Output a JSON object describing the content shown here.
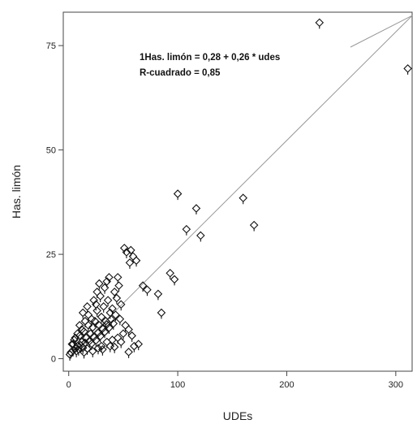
{
  "chart_data": {
    "type": "scatter",
    "xlabel": "UDEs",
    "ylabel": "Has. limón",
    "xlim": [
      -5,
      315
    ],
    "ylim": [
      -3,
      83
    ],
    "x_ticks": [
      0,
      100,
      200,
      300
    ],
    "y_ticks": [
      0,
      25,
      50,
      75
    ],
    "grid": false,
    "legend": "none",
    "marker": "open-diamond-with-tail",
    "annotations": [
      "1Has. limón = 0,28 + 0,26 * udes",
      "R-cuadrado = 0,85"
    ],
    "regression": {
      "intercept": 0.28,
      "slope": 0.26,
      "x_range": [
        0,
        315
      ]
    },
    "series": [
      {
        "points": [
          [
            230,
            80.5
          ],
          [
            311,
            69.5
          ],
          [
            100,
            39.5
          ],
          [
            117,
            36
          ],
          [
            160,
            38.5
          ],
          [
            170,
            32
          ],
          [
            108,
            31
          ],
          [
            121,
            29.5
          ],
          [
            51,
            26.5
          ],
          [
            53,
            25.5
          ],
          [
            57,
            26
          ],
          [
            59,
            24.5
          ],
          [
            56,
            23
          ],
          [
            62,
            23.5
          ],
          [
            93,
            20.5
          ],
          [
            97,
            19
          ],
          [
            68,
            17.5
          ],
          [
            72,
            16.5
          ],
          [
            82,
            15.5
          ],
          [
            85,
            11
          ],
          [
            45,
            19.5
          ],
          [
            46,
            17.5
          ],
          [
            42,
            16
          ],
          [
            44,
            14.5
          ],
          [
            48,
            13
          ],
          [
            40,
            12
          ],
          [
            43,
            10.5
          ],
          [
            47,
            9.5
          ],
          [
            52,
            8
          ],
          [
            55,
            7
          ],
          [
            58,
            5.5
          ],
          [
            60,
            3
          ],
          [
            36,
            14
          ],
          [
            38,
            11
          ],
          [
            34,
            9
          ],
          [
            32,
            12.5
          ],
          [
            30,
            10
          ],
          [
            28,
            8
          ],
          [
            26,
            11.5
          ],
          [
            24,
            9
          ],
          [
            22,
            7.5
          ],
          [
            20,
            6
          ],
          [
            18,
            8
          ],
          [
            16,
            5
          ],
          [
            14,
            6.5
          ],
          [
            12,
            4
          ],
          [
            10,
            5.5
          ],
          [
            8,
            3
          ],
          [
            6,
            2.5
          ],
          [
            4,
            2
          ],
          [
            2,
            1.5
          ],
          [
            1,
            1
          ],
          [
            3,
            3.5
          ],
          [
            5,
            4.5
          ],
          [
            7,
            1.8
          ],
          [
            9,
            2.2
          ],
          [
            11,
            3.2
          ],
          [
            13,
            2.6
          ],
          [
            15,
            3.8
          ],
          [
            17,
            2.4
          ],
          [
            19,
            4.2
          ],
          [
            21,
            3.6
          ],
          [
            23,
            5.2
          ],
          [
            25,
            4.4
          ],
          [
            27,
            6.2
          ],
          [
            29,
            5.4
          ],
          [
            31,
            7.2
          ],
          [
            33,
            6.4
          ],
          [
            35,
            8.2
          ],
          [
            37,
            7.4
          ],
          [
            39,
            9.4
          ],
          [
            41,
            8.4
          ],
          [
            21,
            9.5
          ],
          [
            25,
            13
          ],
          [
            29,
            15
          ],
          [
            33,
            17
          ],
          [
            35,
            18.5
          ],
          [
            37,
            19.5
          ],
          [
            30,
            3
          ],
          [
            35,
            4
          ],
          [
            40,
            4.5
          ],
          [
            45,
            5
          ],
          [
            50,
            6
          ],
          [
            27,
            2.5
          ],
          [
            38,
            3
          ],
          [
            42,
            2.8
          ],
          [
            15,
            9
          ],
          [
            12,
            7
          ],
          [
            18,
            10.5
          ],
          [
            10,
            8
          ],
          [
            6,
            5
          ],
          [
            4,
            3.5
          ],
          [
            8,
            6
          ],
          [
            13,
            11
          ],
          [
            17,
            12.5
          ],
          [
            23,
            14
          ],
          [
            26,
            16
          ],
          [
            28,
            18
          ],
          [
            14,
            1.5
          ],
          [
            22,
            1.8
          ],
          [
            31,
            2.2
          ],
          [
            48,
            4
          ],
          [
            55,
            1.6
          ],
          [
            64,
            3.5
          ]
        ]
      }
    ]
  }
}
